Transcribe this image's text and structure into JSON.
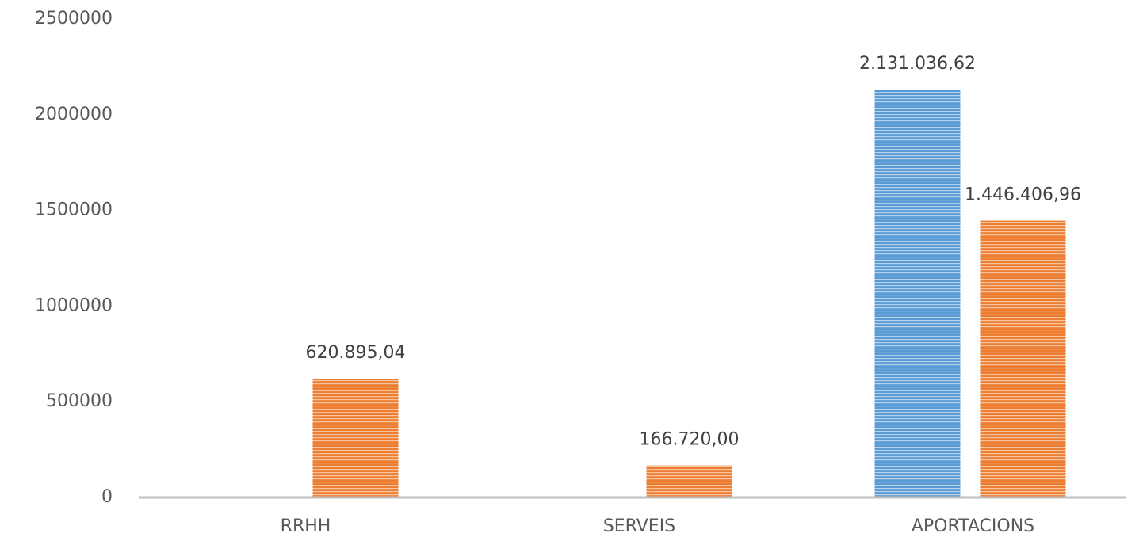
{
  "chart_data": {
    "type": "bar",
    "categories": [
      "RRHH",
      "SERVEIS",
      "APORTACIONS"
    ],
    "series": [
      {
        "color": "#5b9bd5",
        "values": [
          null,
          null,
          2131036.62
        ],
        "value_labels": [
          null,
          null,
          "2.131.036,62"
        ]
      },
      {
        "color": "#ed7d31",
        "values": [
          620895.04,
          166720,
          1446406.96
        ],
        "value_labels": [
          "620.895,04",
          "166.720,00",
          "1.446.406,96"
        ]
      }
    ],
    "ylim": [
      0,
      2500000
    ],
    "yticks": [
      0,
      500000,
      1000000,
      1500000,
      2000000,
      2500000
    ],
    "grid": false
  }
}
